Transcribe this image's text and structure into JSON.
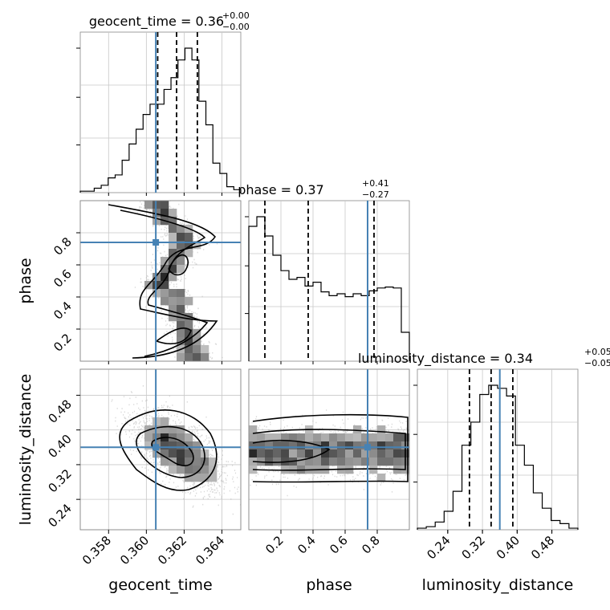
{
  "chart_data": {
    "type": "corner",
    "parameters": [
      "geocent_time",
      "phase",
      "luminosity_distance"
    ],
    "truths": {
      "geocent_time": 0.3605,
      "phase": 0.74,
      "luminosity_distance": 0.36
    },
    "truth_color": "#4682b4",
    "titles": {
      "geocent_time": {
        "label": "geocent_time = 0.36",
        "plus": "+0.00",
        "minus": "−0.00"
      },
      "phase": {
        "label": "phase = 0.37",
        "plus": "+0.41",
        "minus": "−0.27"
      },
      "luminosity_distance": {
        "label": "luminosity_distance = 0.34",
        "plus": "+0.05",
        "minus": "−0.05"
      }
    },
    "axis_labels": {
      "x": [
        "geocent_time",
        "phase",
        "luminosity_distance"
      ],
      "y": [
        "phase",
        "luminosity_distance"
      ]
    },
    "ranges": {
      "geocent_time": [
        0.3565,
        0.365
      ],
      "phase": [
        0.0,
        1.0
      ],
      "luminosity_distance": [
        0.17,
        0.54
      ]
    },
    "ticks": {
      "geocent_time": {
        "values": [
          0.358,
          0.36,
          0.362,
          0.364
        ],
        "labels": [
          "0.358",
          "0.360",
          "0.362",
          "0.364"
        ]
      },
      "phase": {
        "values": [
          0.2,
          0.4,
          0.6,
          0.8
        ],
        "labels": [
          "0.2",
          "0.4",
          "0.6",
          "0.8"
        ]
      },
      "luminosity_distance": {
        "values": [
          0.24,
          0.32,
          0.4,
          0.48
        ],
        "labels": [
          "0.24",
          "0.32",
          "0.40",
          "0.48"
        ]
      }
    },
    "quantiles": {
      "geocent_time": [
        0.3606,
        0.3616,
        0.3627
      ],
      "phase": [
        0.1,
        0.37,
        0.78
      ],
      "luminosity_distance": [
        0.29,
        0.34,
        0.39
      ]
    },
    "histograms": {
      "geocent_time": [
        1,
        1,
        3,
        5,
        10,
        12,
        22,
        33,
        43,
        53,
        60,
        60,
        70,
        78,
        90,
        98,
        90,
        62,
        46,
        20,
        13,
        4,
        2
      ],
      "phase": [
        1.4,
        1.5,
        1.3,
        1.1,
        0.94,
        0.85,
        0.87,
        0.78,
        0.82,
        0.72,
        0.68,
        0.7,
        0.67,
        0.7,
        0.68,
        0.73,
        0.76,
        0.77,
        0.76,
        0.3
      ],
      "luminosity_distance": [
        1,
        2,
        5,
        12,
        25,
        55,
        70,
        88,
        94,
        92,
        87,
        55,
        42,
        24,
        14,
        6,
        4,
        1
      ]
    },
    "grid": true
  }
}
